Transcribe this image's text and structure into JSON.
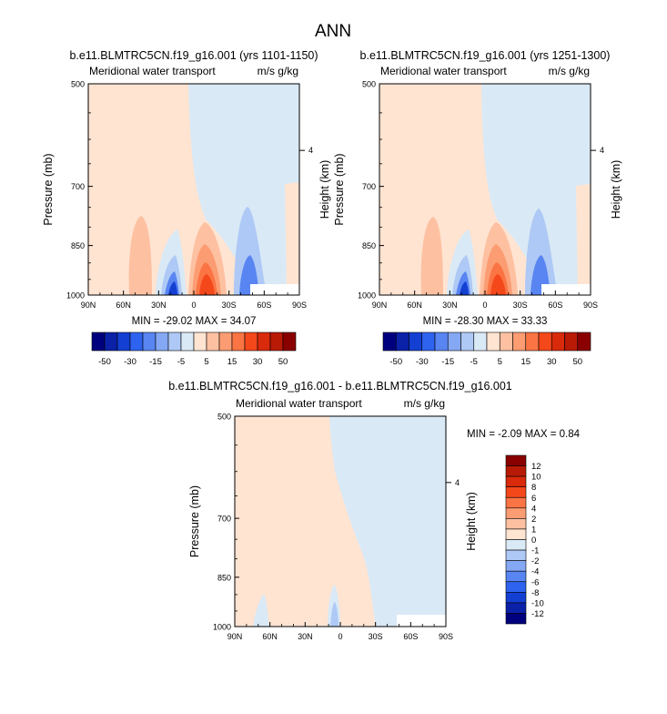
{
  "figure": {
    "title": "ANN"
  },
  "colors": {
    "panel_scale": [
      "#00007f",
      "#0b21a8",
      "#1340d3",
      "#2e63f0",
      "#5985f2",
      "#85a8f4",
      "#aec9f5",
      "#d9e9f6",
      "#ffe4d2",
      "#fdc1a2",
      "#fc9c72",
      "#fb7444",
      "#f4481b",
      "#d92a0b",
      "#b81a06",
      "#8a0000"
    ],
    "diff_scale": [
      "#00007f",
      "#0b21a8",
      "#1340d3",
      "#2e63f0",
      "#5985f2",
      "#85a8f4",
      "#aec9f5",
      "#d9e9f6",
      "#ffe4d2",
      "#fdc1a2",
      "#fc9c72",
      "#fb7444",
      "#f4481b",
      "#d92a0b",
      "#b81a06",
      "#8a0000"
    ],
    "mask": "#ffffff"
  },
  "chart_data": [
    {
      "type": "heatmap",
      "title": "b.e11.BLMTRC5CN.f19_g16.001 (yrs 1101-1150)",
      "left_label": "Meridional water transport",
      "right_label": "m/s g/kg",
      "ylabel": "Pressure (mb)",
      "ylabel_right": "Height (km)",
      "x_ticks": [
        "90N",
        "60N",
        "30N",
        "0",
        "30S",
        "60S",
        "90S"
      ],
      "x_values": [
        90,
        60,
        30,
        0,
        -30,
        -60,
        -90
      ],
      "y_ticks": [
        500,
        700,
        850,
        1000
      ],
      "y_right_ticks": [
        "4"
      ],
      "y_right_values": [
        4
      ],
      "stats": "MIN = -29.02   MAX =  34.07",
      "min": -29.02,
      "max": 34.07
    },
    {
      "type": "heatmap",
      "title": "b.e11.BLMTRC5CN.f19_g16.001 (yrs 1251-1300)",
      "left_label": "Meridional water transport",
      "right_label": "m/s g/kg",
      "ylabel": "Pressure (mb)",
      "ylabel_right": "Height (km)",
      "x_ticks": [
        "90N",
        "60N",
        "30N",
        "0",
        "30S",
        "60S",
        "90S"
      ],
      "x_values": [
        90,
        60,
        30,
        0,
        -30,
        -60,
        -90
      ],
      "y_ticks": [
        500,
        700,
        850,
        1000
      ],
      "y_right_ticks": [
        "4"
      ],
      "y_right_values": [
        4
      ],
      "stats": "MIN = -28.30   MAX =  33.33",
      "min": -28.3,
      "max": 33.33
    },
    {
      "type": "heatmap",
      "title": "b.e11.BLMTRC5CN.f19_g16.001 - b.e11.BLMTRC5CN.f19_g16.001",
      "left_label": "Meridional water transport",
      "right_label": "m/s g/kg",
      "ylabel": "Pressure (mb)",
      "ylabel_right": "Height (km)",
      "x_ticks": [
        "90N",
        "60N",
        "30N",
        "0",
        "30S",
        "60S",
        "90S"
      ],
      "x_values": [
        90,
        60,
        30,
        0,
        -30,
        -60,
        -90
      ],
      "y_ticks": [
        500,
        700,
        850,
        1000
      ],
      "y_right_ticks": [
        "4"
      ],
      "y_right_values": [
        4
      ],
      "stats": "MIN =  -2.09   MAX =   0.84",
      "min": -2.09,
      "max": 0.84
    }
  ],
  "colorbars": {
    "panels": {
      "labels": [
        "-50",
        "-30",
        "-15",
        "-5",
        "5",
        "15",
        "30",
        "50"
      ]
    },
    "diff": {
      "labels": [
        "12",
        "10",
        "8",
        "6",
        "4",
        "2",
        "1",
        "0",
        "-1",
        "-2",
        "-4",
        "-6",
        "-8",
        "-10",
        "-12"
      ]
    }
  }
}
